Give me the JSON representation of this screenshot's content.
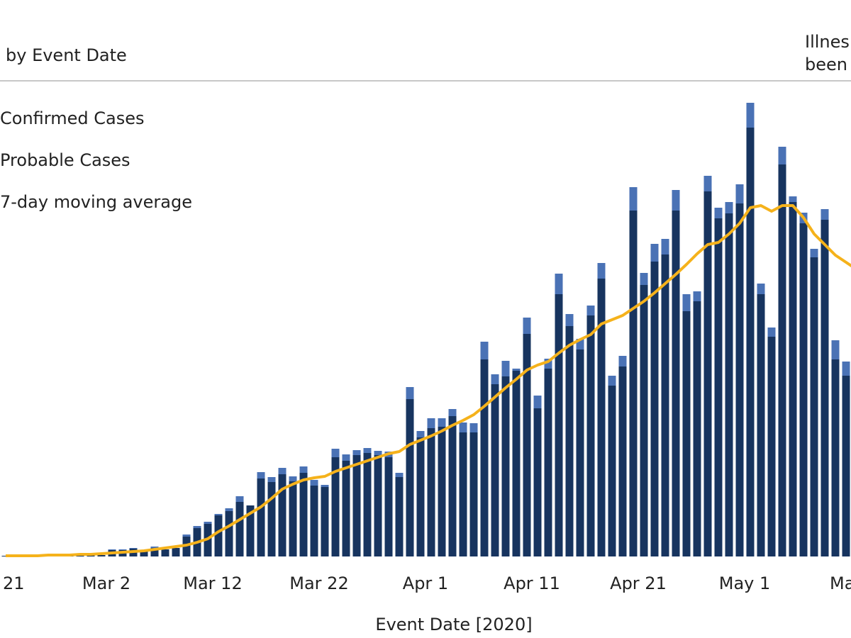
{
  "chart_data": {
    "type": "bar",
    "stacked": true,
    "title": "by Event Date",
    "annotation": [
      "Illnes",
      "been"
    ],
    "x_label": "Event Date [2020]",
    "categories": [
      "21",
      null,
      null,
      null,
      null,
      null,
      null,
      null,
      null,
      null,
      "Mar 2",
      null,
      null,
      null,
      null,
      null,
      null,
      null,
      null,
      null,
      "Mar 12",
      null,
      null,
      null,
      null,
      null,
      null,
      null,
      null,
      null,
      "Mar 22",
      null,
      null,
      null,
      null,
      null,
      null,
      null,
      null,
      null,
      "Apr 1",
      null,
      null,
      null,
      null,
      null,
      null,
      null,
      null,
      null,
      "Apr 11",
      null,
      null,
      null,
      null,
      null,
      null,
      null,
      null,
      null,
      "Apr 21",
      null,
      null,
      null,
      null,
      null,
      null,
      null,
      null,
      null,
      "May 1",
      null,
      null,
      null,
      null,
      null,
      null,
      null,
      null,
      null,
      "Ma"
    ],
    "ylim": [
      0,
      650
    ],
    "series": [
      {
        "name": "Confirmed Cases",
        "color": "#17345f",
        "values": [
          1,
          1,
          1,
          1,
          1,
          1,
          1,
          2,
          2,
          2,
          9,
          9,
          11,
          8,
          12,
          10,
          12,
          28,
          40,
          46,
          58,
          64,
          77,
          72,
          110,
          105,
          116,
          106,
          118,
          100,
          98,
          140,
          135,
          143,
          146,
          143,
          140,
          112,
          222,
          168,
          181,
          183,
          198,
          175,
          175,
          278,
          243,
          254,
          262,
          314,
          209,
          265,
          370,
          325,
          292,
          340,
          392,
          241,
          268,
          488,
          383,
          416,
          426,
          488,
          346,
          360,
          515,
          477,
          484,
          498,
          605,
          370,
          310,
          553,
          500,
          470,
          422,
          475,
          278,
          255,
          240
        ]
      },
      {
        "name": "Probable Cases",
        "color": "#4a72b5",
        "values": [
          0,
          0,
          0,
          0,
          0,
          0,
          0,
          0,
          0,
          0,
          1,
          1,
          1,
          0,
          2,
          0,
          0,
          3,
          3,
          3,
          2,
          4,
          8,
          0,
          9,
          7,
          9,
          7,
          9,
          8,
          3,
          12,
          9,
          7,
          7,
          6,
          8,
          6,
          17,
          9,
          14,
          12,
          10,
          14,
          13,
          25,
          14,
          22,
          3,
          23,
          18,
          14,
          29,
          17,
          15,
          14,
          22,
          14,
          15,
          33,
          17,
          25,
          22,
          29,
          24,
          14,
          22,
          15,
          16,
          27,
          35,
          15,
          13,
          25,
          8,
          15,
          12,
          15,
          27,
          20,
          20
        ]
      },
      {
        "name": "7-day moving average",
        "type": "line",
        "color": "#f5b21b",
        "values": [
          1,
          1,
          1,
          1,
          2,
          2,
          2,
          3,
          3,
          4,
          5,
          6,
          7,
          8,
          10,
          12,
          14,
          16,
          20,
          25,
          35,
          43,
          52,
          61,
          70,
          82,
          95,
          102,
          108,
          111,
          113,
          120,
          125,
          130,
          135,
          140,
          145,
          148,
          158,
          164,
          170,
          177,
          185,
          192,
          200,
          212,
          225,
          238,
          250,
          263,
          270,
          275,
          287,
          298,
          306,
          313,
          328,
          334,
          340,
          350,
          360,
          372,
          385,
          398,
          412,
          427,
          440,
          443,
          455,
          470,
          492,
          495,
          487,
          495,
          495,
          478,
          455,
          440,
          425,
          415,
          405
        ]
      }
    ]
  }
}
